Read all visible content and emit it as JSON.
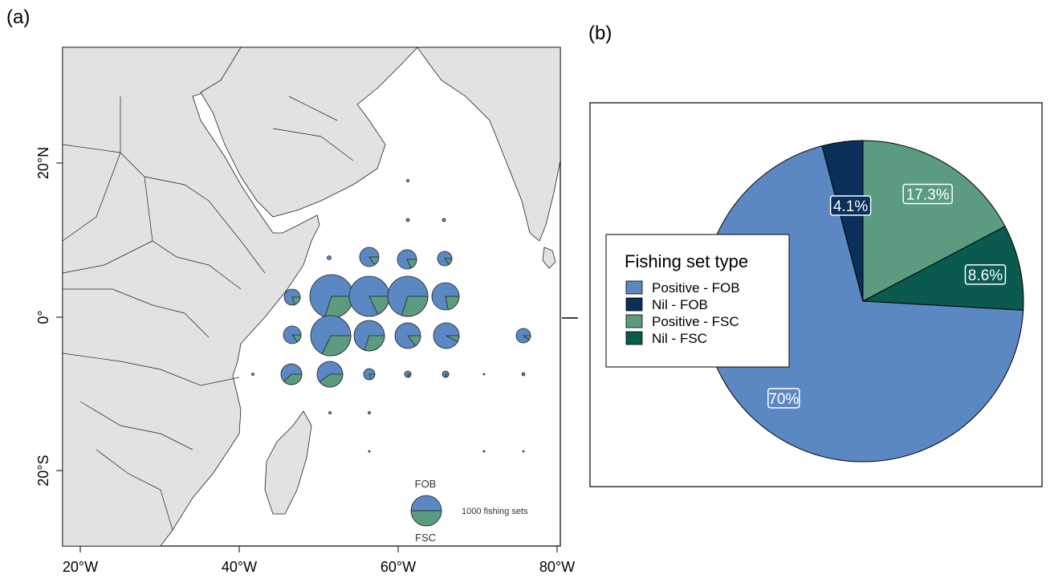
{
  "panel_labels": {
    "a": "(a)",
    "b": "(b)"
  },
  "map": {
    "x_ticks": [
      "20°W",
      "40°W",
      "60°W",
      "80°W"
    ],
    "y_ticks": [
      "20°N",
      "0°",
      "20°S"
    ],
    "legend": {
      "top_label": "FOB",
      "bottom_label": "FSC",
      "scale_label": "1000 fishing sets"
    },
    "colors": {
      "fob": "#5b88c2",
      "fsc": "#5b9b80",
      "land": "#e2e2e2",
      "border": "#222222"
    }
  },
  "chart_data": {
    "type": "pie",
    "title": "",
    "legend_title": "Fishing set type",
    "slices": [
      {
        "name": "Positive - FOB",
        "value": 70,
        "label": "70%",
        "color": "#5b88c2"
      },
      {
        "name": "Nil - FOB",
        "value": 4.1,
        "label": "4.1%",
        "color": "#0a2f5a"
      },
      {
        "name": "Positive - FSC",
        "value": 17.3,
        "label": "17.3%",
        "color": "#5b9b80"
      },
      {
        "name": "Nil - FSC",
        "value": 8.6,
        "label": "8.6%",
        "color": "#0a5a50"
      }
    ]
  }
}
